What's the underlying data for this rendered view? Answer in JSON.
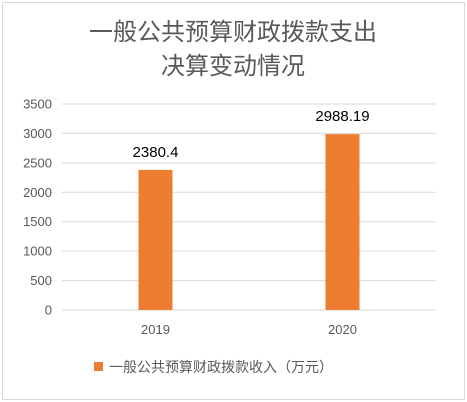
{
  "chart_data": {
    "type": "bar",
    "title_lines": [
      "一般公共预算财政拨款支出",
      "决算变动情况"
    ],
    "categories": [
      "2019",
      "2020"
    ],
    "series": [
      {
        "name": "一般公共预算财政拨款收入（万元）",
        "values": [
          2380.4,
          2988.19
        ],
        "value_labels": [
          "2380.4",
          "2988.19"
        ]
      }
    ],
    "ylim": [
      0,
      3500
    ],
    "yticks": [
      "0",
      "500",
      "1000",
      "1500",
      "2000",
      "2500",
      "3000",
      "3500"
    ],
    "yticks_values": [
      0,
      500,
      1000,
      1500,
      2000,
      2500,
      3000,
      3500
    ],
    "grid": true,
    "legend_position": "bottom",
    "colors": {
      "bar": "#ED7D31",
      "grid": "#d9d9d9",
      "text": "#595959"
    }
  }
}
